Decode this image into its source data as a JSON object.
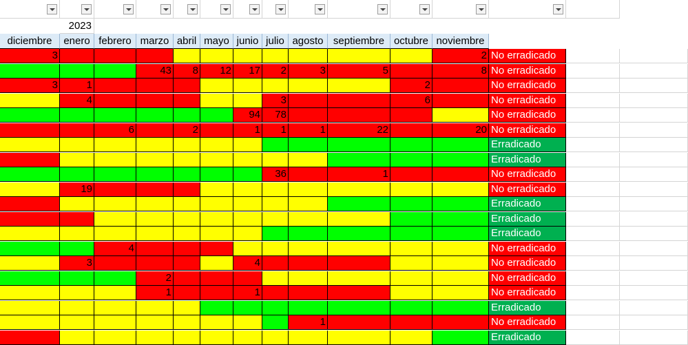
{
  "year_label": "2023",
  "months": [
    "diciembre",
    "enero",
    "febrero",
    "marzo",
    "abril",
    "mayo",
    "junio",
    "julio",
    "agosto",
    "septiembre",
    "octubre",
    "noviembre"
  ],
  "colors": {
    "red": "#ff0000",
    "yellow": "#ffff00",
    "green": "#00ff00",
    "dark_green": "#00b050"
  },
  "status_labels": {
    "no": "No erradicado",
    "yes": "Erradicado"
  },
  "rows": [
    {
      "cells": [
        "R:3",
        "R",
        "R",
        "R",
        "Y",
        "Y",
        "Y",
        "Y",
        "Y",
        "Y",
        "Y",
        "R:2"
      ],
      "status": "no"
    },
    {
      "cells": [
        "G",
        "G",
        "G",
        "R:43",
        "R:8",
        "R:12",
        "R:17",
        "R:2",
        "R:3",
        "R:5",
        "R",
        "R:8"
      ],
      "status": "no"
    },
    {
      "cells": [
        "R:3",
        "R:1",
        "R",
        "R",
        "R",
        "Y",
        "Y",
        "Y",
        "Y",
        "Y",
        "R:2",
        "R"
      ],
      "status": "no"
    },
    {
      "cells": [
        "Y",
        "R:4",
        "R",
        "R",
        "R",
        "Y",
        "Y",
        "R:3",
        "R",
        "R",
        "R:6",
        "R"
      ],
      "status": "no"
    },
    {
      "cells": [
        "G",
        "G",
        "G",
        "G",
        "G",
        "G",
        "R:94",
        "R:78",
        "R",
        "R",
        "R",
        "Y"
      ],
      "status": "no"
    },
    {
      "cells": [
        "R",
        "R",
        "R:6",
        "R",
        "R:2",
        "R",
        "R:1",
        "R:1",
        "R:1",
        "R:22",
        "R",
        "R:20"
      ],
      "status": "no"
    },
    {
      "cells": [
        "Y",
        "Y",
        "Y",
        "Y",
        "Y",
        "Y",
        "Y",
        "G",
        "G",
        "G",
        "G",
        "G"
      ],
      "status": "yes"
    },
    {
      "cells": [
        "R",
        "Y",
        "Y",
        "Y",
        "Y",
        "Y",
        "Y",
        "Y",
        "Y",
        "G",
        "G",
        "G"
      ],
      "status": "yes"
    },
    {
      "cells": [
        "G",
        "G",
        "G",
        "G",
        "G",
        "G",
        "G",
        "R:36",
        "R",
        "R:1",
        "R",
        "R"
      ],
      "status": "no"
    },
    {
      "cells": [
        "Y",
        "R:19",
        "R",
        "R",
        "R",
        "Y",
        "Y",
        "Y",
        "Y",
        "Y",
        "Y",
        "Y"
      ],
      "status": "no"
    },
    {
      "cells": [
        "R",
        "Y",
        "Y",
        "Y",
        "Y",
        "Y",
        "Y",
        "Y",
        "Y",
        "G",
        "G",
        "G"
      ],
      "status": "yes"
    },
    {
      "cells": [
        "R",
        "R",
        "Y",
        "Y",
        "Y",
        "Y",
        "Y",
        "Y",
        "Y",
        "Y",
        "G",
        "G"
      ],
      "status": "yes"
    },
    {
      "cells": [
        "Y",
        "Y",
        "Y",
        "Y",
        "Y",
        "Y",
        "Y",
        "G",
        "G",
        "G",
        "G",
        "G"
      ],
      "status": "yes"
    },
    {
      "cells": [
        "G",
        "G",
        "R:4",
        "R",
        "R",
        "R",
        "Y",
        "Y",
        "Y",
        "Y",
        "Y",
        "Y"
      ],
      "status": "no"
    },
    {
      "cells": [
        "Y",
        "R:3",
        "R",
        "R",
        "R",
        "Y",
        "R:4",
        "R",
        "R",
        "R",
        "Y",
        "Y"
      ],
      "status": "no"
    },
    {
      "cells": [
        "G",
        "G",
        "G",
        "R:2",
        "R",
        "R",
        "R",
        "Y",
        "Y",
        "Y",
        "Y",
        "Y"
      ],
      "status": "no"
    },
    {
      "cells": [
        "Y",
        "Y",
        "Y",
        "R:1",
        "R",
        "R",
        "R:1",
        "R",
        "R",
        "R",
        "Y",
        "Y"
      ],
      "status": "no"
    },
    {
      "cells": [
        "Y",
        "Y",
        "Y",
        "Y",
        "Y",
        "G",
        "G",
        "G",
        "G",
        "G",
        "G",
        "G"
      ],
      "status": "yes"
    },
    {
      "cells": [
        "Y",
        "Y",
        "Y",
        "Y",
        "Y",
        "Y",
        "Y",
        "G",
        "R:1",
        "R",
        "R",
        "R"
      ],
      "status": "no"
    },
    {
      "cells": [
        "R",
        "Y",
        "Y",
        "Y",
        "Y",
        "Y",
        "Y",
        "Y",
        "Y",
        "Y",
        "Y",
        "G"
      ],
      "status": "yes"
    }
  ]
}
